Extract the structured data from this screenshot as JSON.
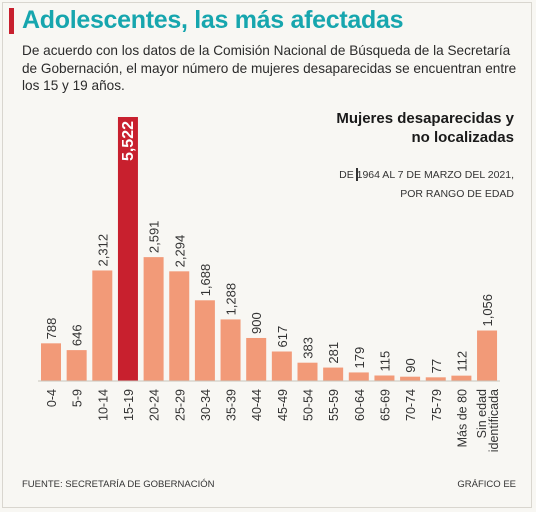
{
  "header": {
    "title": "Adolescentes, las más afectadas",
    "subtitle": "De acuerdo con los datos de la Comisión Nacional de Búsqueda de la Secretaría de Gobernación, el mayor número de mujeres desaparecidas se encuentran entre los 15 y 19 años."
  },
  "legend": {
    "title": "Mujeres desaparecidas y no localizadas",
    "subtitle": "De 1964 al 7 de marzo del 2021, por rango de edad"
  },
  "footer": {
    "source": "Fuente: Secretaría de Gobernación",
    "credit": "Gráfico EE"
  },
  "colors": {
    "title": "#17a6ae",
    "accent": "#c8202e",
    "bar": "#f29a78",
    "highlight_bar": "#c8202e"
  },
  "chart_data": {
    "type": "bar",
    "categories": [
      "0-4",
      "5-9",
      "10-14",
      "15-19",
      "20-24",
      "25-29",
      "30-34",
      "35-39",
      "40-44",
      "45-49",
      "50-54",
      "55-59",
      "60-64",
      "65-69",
      "70-74",
      "75-79",
      "Más de 80",
      "Sin edad identificada"
    ],
    "values": [
      788,
      646,
      2312,
      5522,
      2591,
      2294,
      1688,
      1288,
      900,
      617,
      383,
      281,
      179,
      115,
      90,
      77,
      112,
      1056
    ],
    "value_labels": [
      "788",
      "646",
      "2,312",
      "5,522",
      "2,591",
      "2,294",
      "1,688",
      "1,288",
      "900",
      "617",
      "383",
      "281",
      "179",
      "115",
      "90",
      "77",
      "112",
      "1,056"
    ],
    "highlight_index": 3,
    "ylim": [
      0,
      5522
    ],
    "grid": false,
    "legend_position": "top-right"
  }
}
